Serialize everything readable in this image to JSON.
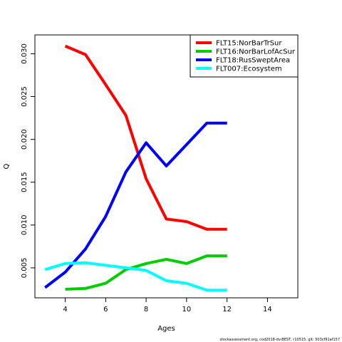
{
  "chart_data": {
    "type": "line",
    "xlabel": "Ages",
    "ylabel": "Q",
    "xlim": [
      2.5,
      15.5
    ],
    "ylim": [
      0.0015,
      0.0322
    ],
    "xticks": [
      4,
      6,
      8,
      10,
      12,
      14
    ],
    "yticks": [
      0.005,
      0.01,
      0.015,
      0.02,
      0.025,
      0.03
    ],
    "ytick_labels": [
      "0.005",
      "0.010",
      "0.015",
      "0.020",
      "0.025",
      "0.030"
    ],
    "legend_position": "top-right",
    "grid": false,
    "series": [
      {
        "name": "FLT15:NorBarTrSur",
        "color": "#ff0000",
        "x": [
          4,
          5,
          6,
          7,
          8,
          9,
          10,
          11,
          12
        ],
        "values": [
          0.0309,
          0.0299,
          0.0264,
          0.0228,
          0.0154,
          0.0107,
          0.0104,
          0.0095,
          0.0095
        ]
      },
      {
        "name": "FLT16:NorBarLofAcSur",
        "color": "#00cd00",
        "x": [
          4,
          5,
          6,
          7,
          8,
          9,
          10,
          11,
          12
        ],
        "values": [
          0.0025,
          0.0026,
          0.0032,
          0.0048,
          0.0055,
          0.006,
          0.0055,
          0.0064,
          0.0064
        ]
      },
      {
        "name": "FLT18:RusSweptArea",
        "color": "#0000ff",
        "x": [
          3,
          4,
          5,
          6,
          7,
          8,
          9,
          10,
          11,
          12
        ],
        "values": [
          0.0027,
          0.0045,
          0.0072,
          0.011,
          0.0162,
          0.0196,
          0.0169,
          0.0194,
          0.0219,
          0.0219
        ]
      },
      {
        "name": "FLT007:Ecosystem",
        "color": "#00ffff",
        "x": [
          3,
          4,
          5,
          6,
          7,
          8,
          9,
          10,
          11,
          12
        ],
        "values": [
          0.0048,
          0.0055,
          0.0056,
          0.0053,
          0.005,
          0.0047,
          0.0035,
          0.0032,
          0.0024,
          0.0024
        ]
      }
    ]
  },
  "footnote": "stockassessment.org, cod2018-dv-BEST, r10515, git: 503cf91af157"
}
